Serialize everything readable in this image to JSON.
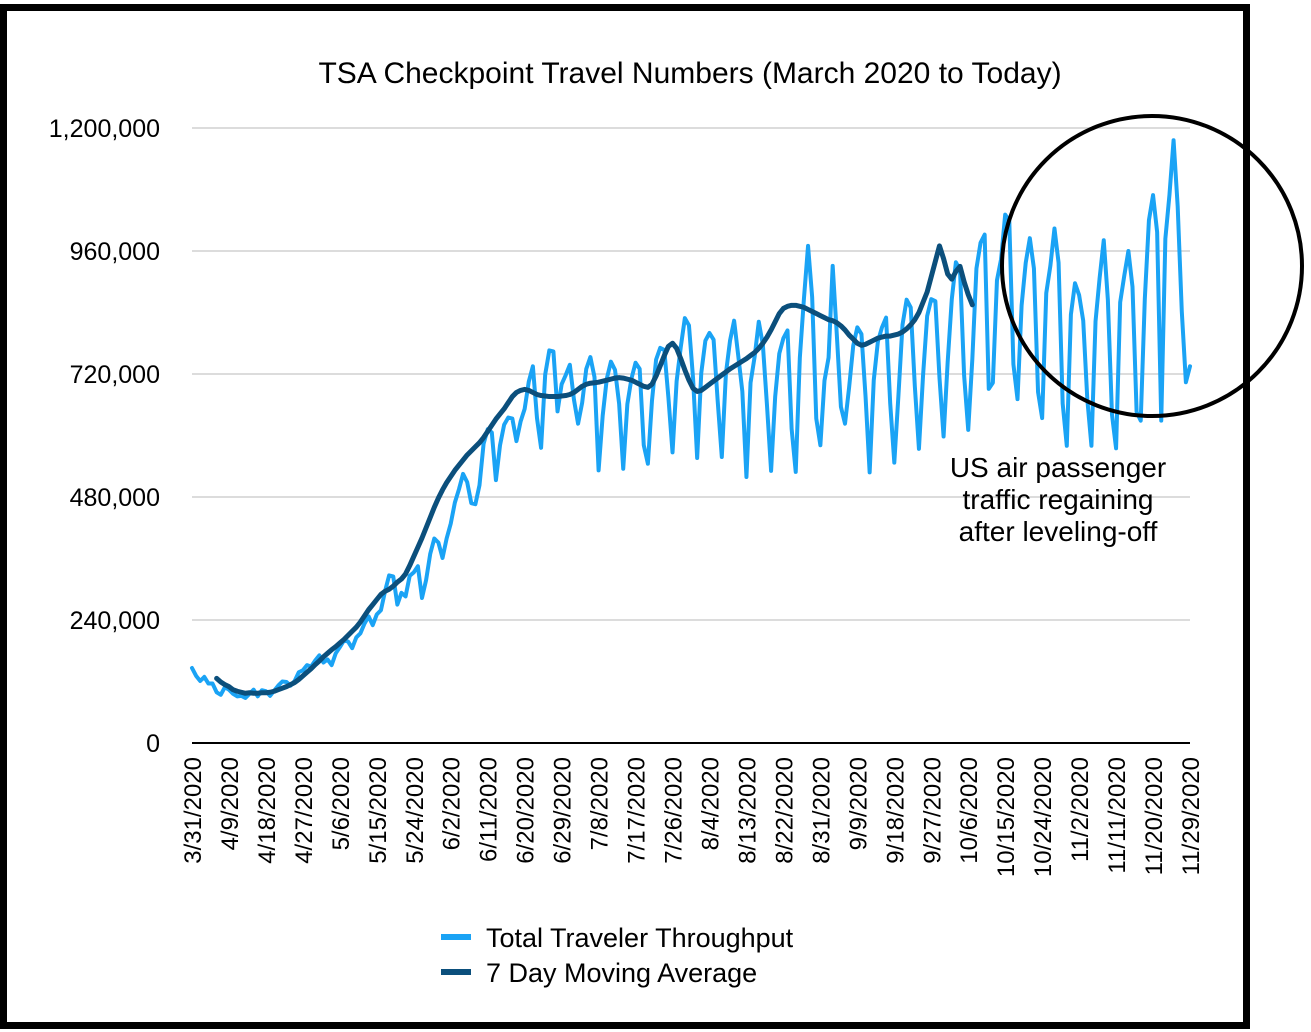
{
  "chart_data": {
    "type": "line",
    "title": "TSA Checkpoint Travel Numbers (March 2020 to Today)",
    "xlabel": "",
    "ylabel": "",
    "ylim": [
      0,
      1200000
    ],
    "y_ticks": [
      0,
      240000,
      480000,
      720000,
      960000,
      1200000
    ],
    "y_tick_labels": [
      "0",
      "240,000",
      "480,000",
      "720,000",
      "960,000",
      "1,200,000"
    ],
    "x_tick_labels": [
      "3/31/2020",
      "4/9/2020",
      "4/18/2020",
      "4/27/2020",
      "5/6/2020",
      "5/15/2020",
      "5/24/2020",
      "6/2/2020",
      "6/11/2020",
      "6/20/2020",
      "6/29/2020",
      "7/8/2020",
      "7/17/2020",
      "7/26/2020",
      "8/4/2020",
      "8/13/2020",
      "8/22/2020",
      "8/31/2020",
      "9/9/2020",
      "9/18/2020",
      "9/27/2020",
      "10/6/2020",
      "10/15/2020",
      "10/24/2020",
      "11/2/2020",
      "11/11/2020",
      "11/20/2020",
      "11/29/2020"
    ],
    "grid": true,
    "legend_position": "bottom-center",
    "colors": {
      "total": "#1aa3f5",
      "avg": "#0b4f7c",
      "grid": "#d0d0d0",
      "frame": "#000000"
    },
    "series": [
      {
        "name": "Total Traveler Throughput",
        "start": "3/31/2020",
        "values": [
          146348,
          131000,
          121000,
          129000,
          116000,
          116000,
          99000,
          94000,
          109000,
          104000,
          96000,
          91000,
          92000,
          88000,
          96000,
          104000,
          91000,
          103000,
          101000,
          92000,
          102000,
          112000,
          120000,
          119000,
          112000,
          121000,
          138000,
          142000,
          152000,
          149000,
          161000,
          171000,
          157000,
          163000,
          152000,
          175000,
          187000,
          200000,
          198000,
          185000,
          206000,
          214000,
          233000,
          247000,
          230000,
          251000,
          259000,
          296000,
          327000,
          325000,
          270000,
          293000,
          286000,
          326000,
          333000,
          345000,
          283000,
          318000,
          369000,
          399000,
          391000,
          361000,
          399000,
          428000,
          469000,
          495000,
          525000,
          509000,
          468000,
          466000,
          503000,
          584000,
          612000,
          606000,
          513000,
          581000,
          621000,
          635000,
          633000,
          589000,
          627000,
          652000,
          705000,
          735000,
          634000,
          576000,
          719000,
          766000,
          764000,
          647000,
          700000,
          718000,
          738000,
          670000,
          623000,
          664000,
          730000,
          753000,
          714000,
          532000,
          639000,
          711000,
          744000,
          728000,
          662000,
          535000,
          661000,
          711000,
          742000,
          730000,
          581000,
          545000,
          668000,
          748000,
          771000,
          767000,
          674000,
          567000,
          706000,
          772000,
          829000,
          815000,
          712000,
          556000,
          722000,
          785000,
          800000,
          787000,
          667000,
          558000,
          721000,
          785000,
          824000,
          756000,
          686000,
          519000,
          703000,
          754000,
          822000,
          777000,
          659000,
          531000,
          676000,
          760000,
          790000,
          805000,
          613000,
          529000,
          752000,
          867000,
          970000,
          870000,
          633000,
          581000,
          707000,
          752000,
          931000,
          797000,
          656000,
          623000,
          694000,
          775000,
          811000,
          798000,
          676000,
          528000,
          708000,
          783000,
          811000,
          830000,
          663000,
          547000,
          677000,
          816000,
          865000,
          850000,
          696000,
          574000,
          717000,
          833000,
          866000,
          862000,
          713000,
          598000,
          744000,
          866000,
          938000,
          923000,
          717000,
          611000,
          749000,
          926000,
          976000,
          992000,
          691000,
          703000,
          903000,
          944000,
          1031000,
          1019000,
          739000,
          671000,
          854000,
          937000,
          985000,
          926000,
          685000,
          634000,
          878000,
          931000,
          1004000,
          937000,
          662000,
          580000,
          836000,
          897000,
          874000,
          824000,
          670000,
          580000,
          823000,
          908000,
          981000,
          865000,
          641000,
          575000,
          860000,
          912000,
          960000,
          890000,
          646000,
          629000,
          867000,
          1020000,
          1069000,
          997000,
          629000,
          984000,
          1070000,
          1176000,
          1047000,
          842000,
          704000,
          735000
        ]
      },
      {
        "name": "7 Day Moving Average",
        "start": "4/6/2020",
        "values": [
          126000,
          119000,
          114000,
          110000,
          104000,
          101000,
          99000,
          97000,
          98000,
          97000,
          97000,
          98000,
          98000,
          99000,
          101000,
          104000,
          107000,
          110000,
          114000,
          118000,
          124000,
          131000,
          138000,
          145000,
          153000,
          160000,
          168000,
          175000,
          182000,
          188000,
          195000,
          202000,
          210000,
          218000,
          226000,
          236000,
          248000,
          260000,
          270000,
          280000,
          290000,
          296000,
          300000,
          306000,
          314000,
          320000,
          330000,
          346000,
          364000,
          382000,
          400000,
          420000,
          440000,
          460000,
          478000,
          494000,
          508000,
          520000,
          532000,
          542000,
          552000,
          562000,
          570000,
          578000,
          586000,
          596000,
          608000,
          620000,
          632000,
          642000,
          652000,
          664000,
          676000,
          684000,
          688000,
          690000,
          688000,
          684000,
          680000,
          678000,
          677000,
          676000,
          676000,
          676000,
          677000,
          678000,
          680000,
          684000,
          690000,
          696000,
          700000,
          702000,
          703000,
          704000,
          706000,
          708000,
          710000,
          712000,
          713000,
          712000,
          710000,
          708000,
          704000,
          700000,
          696000,
          694000,
          700000,
          716000,
          736000,
          756000,
          774000,
          780000,
          770000,
          750000,
          728000,
          708000,
          692000,
          686000,
          688000,
          694000,
          700000,
          706000,
          712000,
          718000,
          724000,
          730000,
          735000,
          740000,
          745000,
          750000,
          756000,
          762000,
          770000,
          780000,
          792000,
          806000,
          822000,
          838000,
          848000,
          852000,
          854000,
          854000,
          852000,
          850000,
          846000,
          842000,
          838000,
          834000,
          830000,
          826000,
          824000,
          820000,
          814000,
          806000,
          796000,
          788000,
          780000,
          776000,
          778000,
          782000,
          786000,
          790000,
          792000,
          794000,
          794000,
          796000,
          798000,
          802000,
          808000,
          816000,
          826000,
          840000,
          860000,
          880000,
          910000,
          940000,
          970000,
          945000,
          915000,
          905000,
          920000,
          930000,
          900000,
          875000,
          855000
        ]
      }
    ],
    "annotation": {
      "lines": [
        "US air passenger",
        "traffic regaining",
        "after leveling-off"
      ]
    }
  }
}
